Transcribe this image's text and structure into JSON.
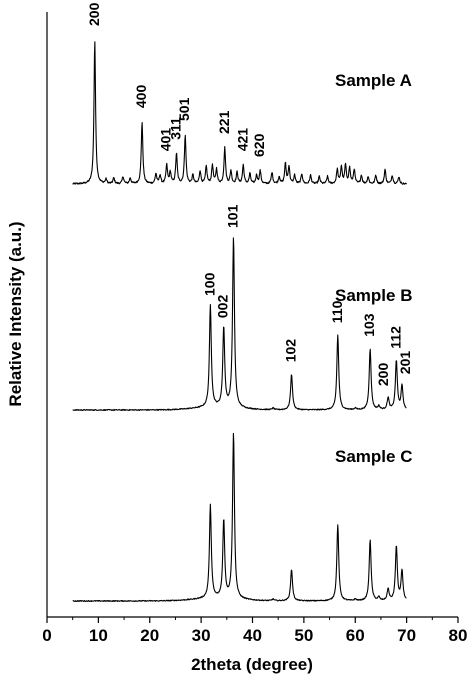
{
  "chart_data": {
    "type": "line",
    "xlabel": "2theta (degree)",
    "ylabel": "Relative Intensity (a.u.)",
    "xlim": [
      0,
      80
    ],
    "x_ticks": [
      0,
      10,
      20,
      30,
      40,
      50,
      60,
      70,
      80
    ],
    "y_ticks_shown": false,
    "series": [
      {
        "name": "Sample A",
        "x_range": [
          5,
          70
        ],
        "peaks": [
          {
            "x": 9.3,
            "label": "200",
            "height": 1.0
          },
          {
            "x": 18.5,
            "label": "400",
            "height": 0.43
          },
          {
            "x": 23.3,
            "label": "401",
            "height": 0.13
          },
          {
            "x": 25.2,
            "label": "311",
            "height": 0.21
          },
          {
            "x": 26.9,
            "label": "501",
            "height": 0.34
          },
          {
            "x": 34.6,
            "label": "221",
            "height": 0.25
          },
          {
            "x": 38.2,
            "label": "421",
            "height": 0.13
          },
          {
            "x": 41.5,
            "label": "620",
            "height": 0.09
          }
        ]
      },
      {
        "name": "Sample B",
        "x_range": [
          5,
          70
        ],
        "peaks": [
          {
            "x": 31.8,
            "label": "100",
            "height": 0.6
          },
          {
            "x": 34.4,
            "label": "002",
            "height": 0.47
          },
          {
            "x": 36.3,
            "label": "101",
            "height": 1.0
          },
          {
            "x": 47.6,
            "label": "102",
            "height": 0.21
          },
          {
            "x": 56.6,
            "label": "110",
            "height": 0.44
          },
          {
            "x": 62.9,
            "label": "103",
            "height": 0.36
          },
          {
            "x": 66.4,
            "label": "200",
            "height": 0.07
          },
          {
            "x": 68.0,
            "label": "112",
            "height": 0.29
          },
          {
            "x": 69.1,
            "label": "201",
            "height": 0.14
          }
        ]
      },
      {
        "name": "Sample C",
        "x_range": [
          5,
          70
        ],
        "peaks": [
          {
            "x": 31.8,
            "height": 0.56
          },
          {
            "x": 34.4,
            "height": 0.47
          },
          {
            "x": 36.3,
            "height": 1.0
          },
          {
            "x": 47.6,
            "height": 0.19
          },
          {
            "x": 56.6,
            "height": 0.46
          },
          {
            "x": 62.9,
            "height": 0.37
          },
          {
            "x": 66.4,
            "height": 0.07
          },
          {
            "x": 68.0,
            "height": 0.33
          },
          {
            "x": 69.1,
            "height": 0.18
          }
        ]
      }
    ]
  }
}
